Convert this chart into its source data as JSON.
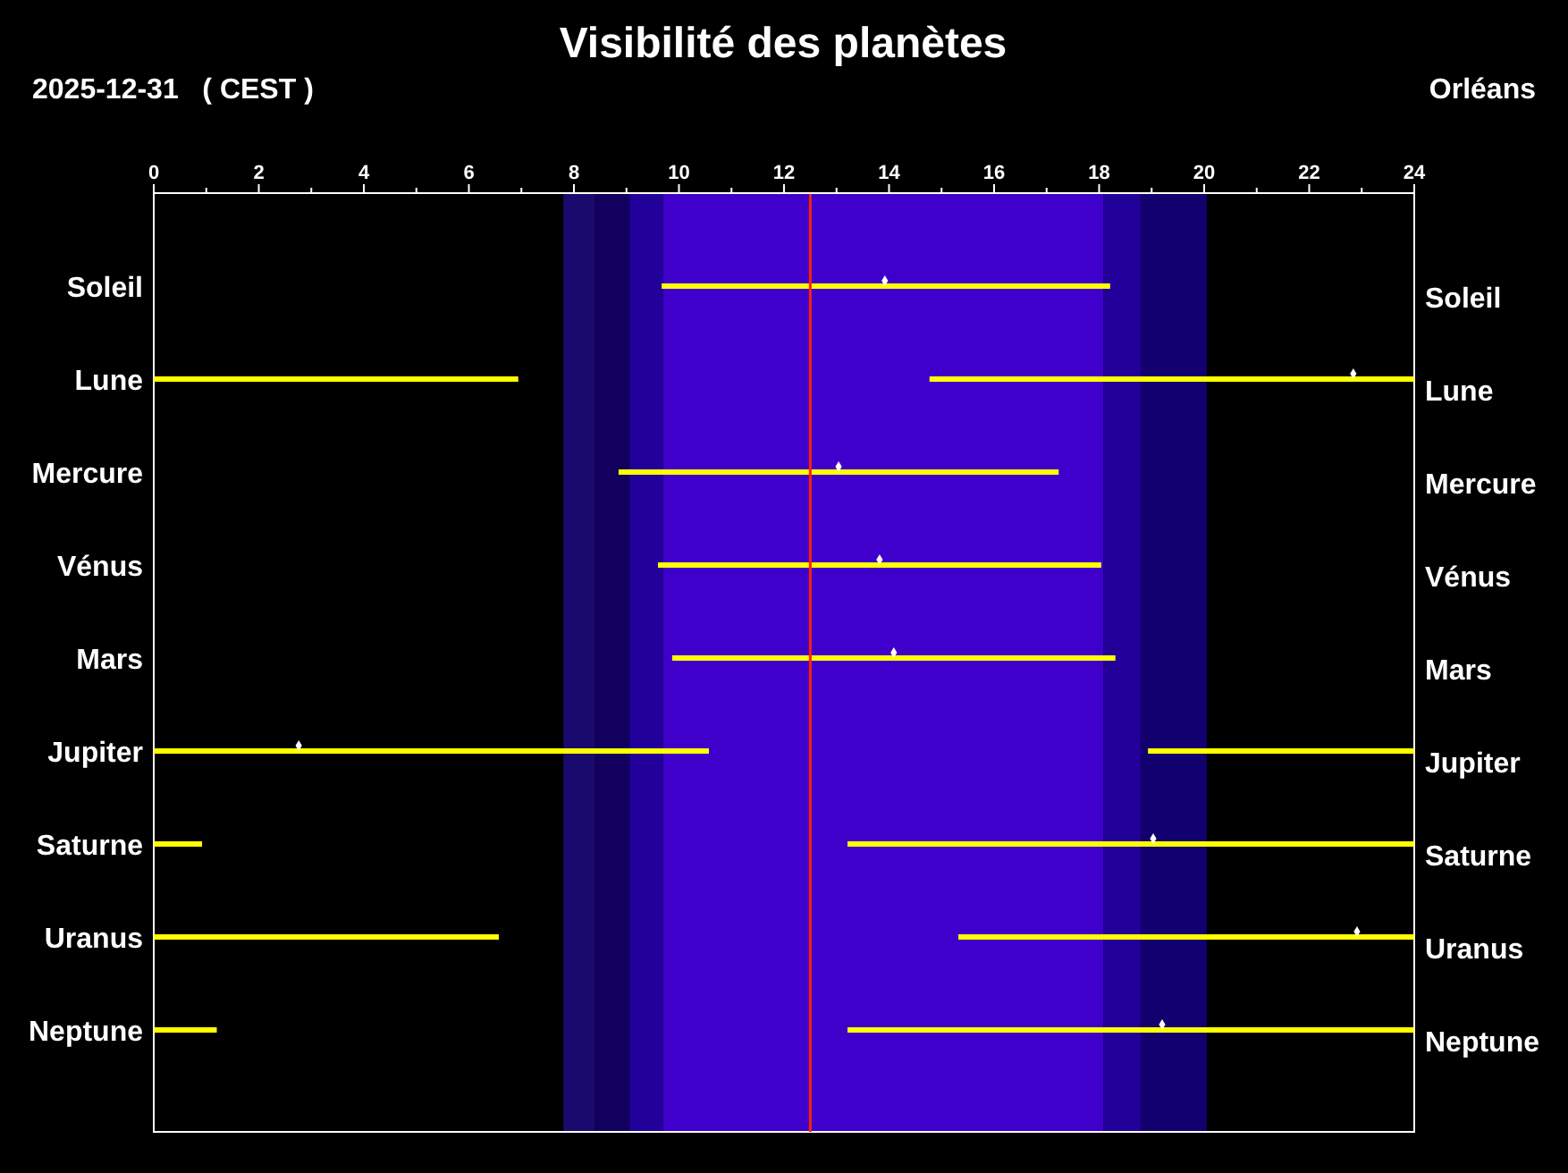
{
  "chart_data": {
    "type": "bar",
    "orientation": "horizontal",
    "title": "Visibilité des planètes",
    "annotations": [
      "2025-12-31   ( CEST )",
      "Orléans"
    ],
    "categories": [
      "Soleil",
      "Lune",
      "Mercure",
      "Vénus",
      "Mars",
      "Jupiter",
      "Saturne",
      "Uranus",
      "Neptune"
    ],
    "xlim": [
      0,
      24
    ],
    "xticks": [
      0,
      {
        "value": 1,
        "label": null
      },
      2,
      {
        "value": 3,
        "label": null
      },
      4,
      {
        "value": 5,
        "label": null
      },
      6,
      {
        "value": 7,
        "label": null
      },
      8,
      {
        "value": 9,
        "label": null
      },
      10,
      {
        "value": 11,
        "label": null
      },
      12,
      {
        "value": 13,
        "label": null
      },
      14,
      {
        "value": 15,
        "label": null
      },
      16,
      {
        "value": 17,
        "label": null
      },
      18,
      {
        "value": 19,
        "label": null
      },
      20,
      {
        "value": 21,
        "label": null
      },
      22,
      {
        "value": 23,
        "label": null
      },
      24
    ],
    "series": [
      {
        "color": "#ffff00",
        "base": [
          9.67,
          0,
          8.85,
          9.6,
          9.87,
          0,
          0,
          0,
          0
        ],
        "values": [
          8.54,
          6.94,
          8.38,
          8.44,
          8.44,
          10.57,
          0.92,
          6.57,
          1.2
        ]
      },
      {
        "color": "#ffff00",
        "base": [
          null,
          14.77,
          null,
          null,
          null,
          18.93,
          13.21,
          15.32,
          13.21
        ],
        "values": [
          null,
          9.23,
          null,
          null,
          null,
          5.07,
          10.79,
          8.68,
          10.79
        ]
      },
      {
        "type": "scatter",
        "color": "#ffffff",
        "marker": "diamond",
        "values": [
          13.92,
          22.84,
          13.04,
          13.82,
          14.09,
          2.76,
          19.03,
          22.91,
          19.2
        ]
      }
    ],
    "bands": [
      {
        "axis": "x",
        "from": 7.8,
        "to": 8.4,
        "color": "#1a0a6e"
      },
      {
        "axis": "x",
        "from": 8.4,
        "to": 9.06,
        "color": "#12005e"
      },
      {
        "axis": "x",
        "from": 9.06,
        "to": 9.7,
        "color": "#22009a"
      },
      {
        "axis": "x",
        "from": 9.7,
        "to": 18.08,
        "color": "#3f00cc"
      },
      {
        "axis": "x",
        "from": 18.08,
        "to": 18.79,
        "color": "#22009a"
      },
      {
        "axis": "x",
        "from": 18.79,
        "to": 20.05,
        "color": "#12006e"
      }
    ],
    "ref_lines": [
      {
        "axis": "x",
        "value": 12.5,
        "color": "#ff2200"
      }
    ],
    "grid": false
  }
}
